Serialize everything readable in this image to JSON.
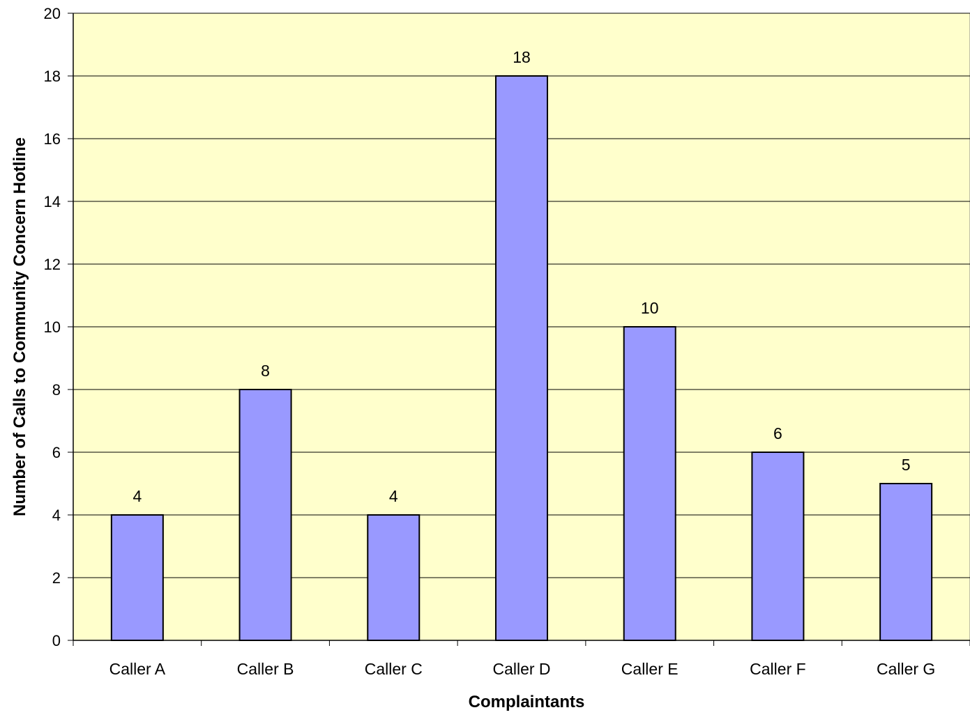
{
  "chart_data": {
    "type": "bar",
    "title": "",
    "xlabel": "Complaintants",
    "ylabel": "Number of Calls to Community Concern Hotline",
    "categories": [
      "Caller A",
      "Caller B",
      "Caller C",
      "Caller D",
      "Caller E",
      "Caller F",
      "Caller G"
    ],
    "values": [
      4,
      8,
      4,
      18,
      10,
      6,
      5
    ],
    "data_labels": [
      "4",
      "8",
      "4",
      "18",
      "10",
      "6",
      "5"
    ],
    "ylim": [
      0,
      20
    ],
    "yticks": [
      0,
      2,
      4,
      6,
      8,
      10,
      12,
      14,
      16,
      18,
      20
    ],
    "ytick_labels": [
      "0",
      "2",
      "4",
      "6",
      "8",
      "10",
      "12",
      "14",
      "16",
      "18",
      "20"
    ],
    "grid": true,
    "legend": "none",
    "colors": {
      "bar_fill": "#9999ff",
      "bar_stroke": "#000000",
      "plot_background": "#ffffcc",
      "gridline": "#000000"
    }
  }
}
